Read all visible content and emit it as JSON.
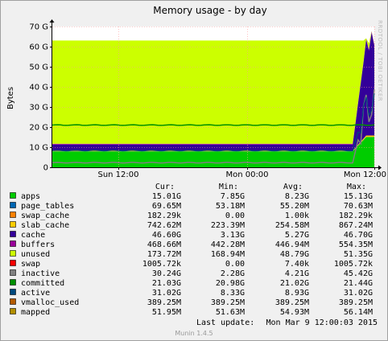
{
  "chart_data": {
    "type": "area",
    "title": "Memory usage - by day",
    "ylabel": "Bytes",
    "ylim": [
      0,
      70
    ],
    "y_unit": "G",
    "y_ticks": [
      "0",
      "10 G",
      "20 G",
      "30 G",
      "40 G",
      "50 G",
      "60 G",
      "70 G"
    ],
    "x_ticks": [
      "Sun 12:00",
      "Mon 00:00",
      "Mon 12:00"
    ],
    "watermark": "RRDTOOL / TOBI OETIKER",
    "footer": "Munin 1.4.5",
    "last_update_label": "Last update:",
    "last_update_value": "Mon Mar  9 12:00:03 2015",
    "legend_headers": [
      "Cur:",
      "Min:",
      "Avg:",
      "Max:"
    ],
    "colors": {
      "apps": "#00cc00",
      "page_tables": "#0066b3",
      "swap_cache": "#ff8000",
      "slab_cache": "#ffcc00",
      "cache": "#330099",
      "buffers": "#990099",
      "unused": "#ccff00",
      "swap": "#ff0000",
      "inactive": "#808080",
      "committed": "#008f00",
      "active": "#00487d",
      "vmalloc_used": "#b35a00",
      "mapped": "#b38f00"
    },
    "series": [
      {
        "name": "apps",
        "cur": "15.01G",
        "min": "7.85G",
        "avg": "8.23G",
        "max": "15.13G",
        "level_before": 7.9,
        "level_after": 15.0
      },
      {
        "name": "page_tables",
        "cur": "69.65M",
        "min": "53.18M",
        "avg": "55.20M",
        "max": "70.63M",
        "level_before": 0.05,
        "level_after": 0.07
      },
      {
        "name": "swap_cache",
        "cur": "182.29k",
        "min": "0.00",
        "avg": "1.00k",
        "max": "182.29k",
        "level_before": 0,
        "level_after": 0
      },
      {
        "name": "slab_cache",
        "cur": "742.62M",
        "min": "223.39M",
        "avg": "254.58M",
        "max": "867.24M",
        "level_before": 0.25,
        "level_after": 0.74
      },
      {
        "name": "cache",
        "cur": "46.60G",
        "min": "3.13G",
        "avg": "5.27G",
        "max": "46.70G",
        "level_before": 3.1,
        "level_after": 46.6
      },
      {
        "name": "buffers",
        "cur": "468.66M",
        "min": "442.28M",
        "avg": "446.94M",
        "max": "554.35M",
        "level_before": 0.44,
        "level_after": 0.47
      },
      {
        "name": "unused",
        "cur": "173.72M",
        "min": "168.94M",
        "avg": "48.79G",
        "max": "51.35G",
        "level_before": 51.3,
        "level_after": 0.17
      },
      {
        "name": "swap",
        "cur": "1005.72k",
        "min": "0.00",
        "avg": "7.40k",
        "max": "1005.72k",
        "level_before": 0,
        "level_after": 0
      },
      {
        "name": "inactive",
        "cur": "30.24G",
        "min": "2.28G",
        "avg": "4.21G",
        "max": "45.42G"
      },
      {
        "name": "committed",
        "cur": "21.03G",
        "min": "20.98G",
        "avg": "21.02G",
        "max": "21.44G"
      },
      {
        "name": "active",
        "cur": "31.02G",
        "min": "8.33G",
        "avg": "8.93G",
        "max": "31.02G"
      },
      {
        "name": "vmalloc_used",
        "cur": "389.25M",
        "min": "389.25M",
        "avg": "389.25M",
        "max": "389.25M"
      },
      {
        "name": "mapped",
        "cur": "51.95M",
        "min": "51.63M",
        "avg": "54.93M",
        "max": "56.14M"
      }
    ]
  }
}
